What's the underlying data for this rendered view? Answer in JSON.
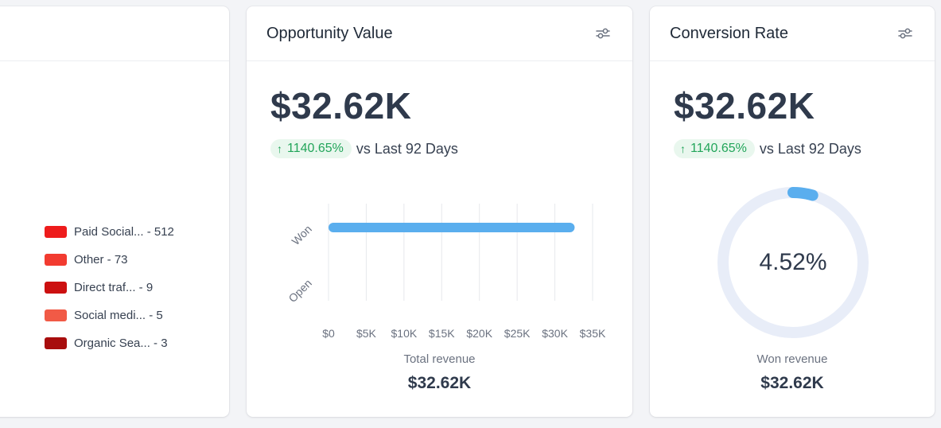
{
  "legend_card": {
    "items": [
      {
        "label": "Paid Social... - 512",
        "color": "#ee1c1c"
      },
      {
        "label": "Other - 73",
        "color": "#f23b30"
      },
      {
        "label": "Direct traf... - 9",
        "color": "#cc1010"
      },
      {
        "label": "Social medi... - 5",
        "color": "#f15a46"
      },
      {
        "label": "Organic Sea... - 3",
        "color": "#a80d0d"
      }
    ]
  },
  "opportunity_card": {
    "title": "Opportunity Value",
    "value": "$32.62K",
    "trend_pct": "1140.65%",
    "trend_text": "vs Last 92 Days",
    "footer_label": "Total revenue",
    "footer_value": "$32.62K"
  },
  "conversion_card": {
    "title": "Conversion Rate",
    "value": "$32.62K",
    "trend_pct": "1140.65%",
    "trend_text": "vs Last 92 Days",
    "donut_label": "4.52%",
    "donut_fraction": 0.0452,
    "footer_label": "Won revenue",
    "footer_value": "$32.62K"
  },
  "colors": {
    "accent_blue": "#5aaeee",
    "trend_green": "#22a55a",
    "donut_track": "#e8edf8"
  },
  "chart_data": {
    "type": "bar",
    "orientation": "horizontal",
    "categories": [
      "Won",
      "Open"
    ],
    "values": [
      32620,
      0
    ],
    "xlim": [
      0,
      35000
    ],
    "x_ticks": [
      "$0",
      "$5K",
      "$10K",
      "$15K",
      "$20K",
      "$25K",
      "$30K",
      "$35K"
    ],
    "xlabel": "",
    "ylabel": "",
    "grid": true
  }
}
